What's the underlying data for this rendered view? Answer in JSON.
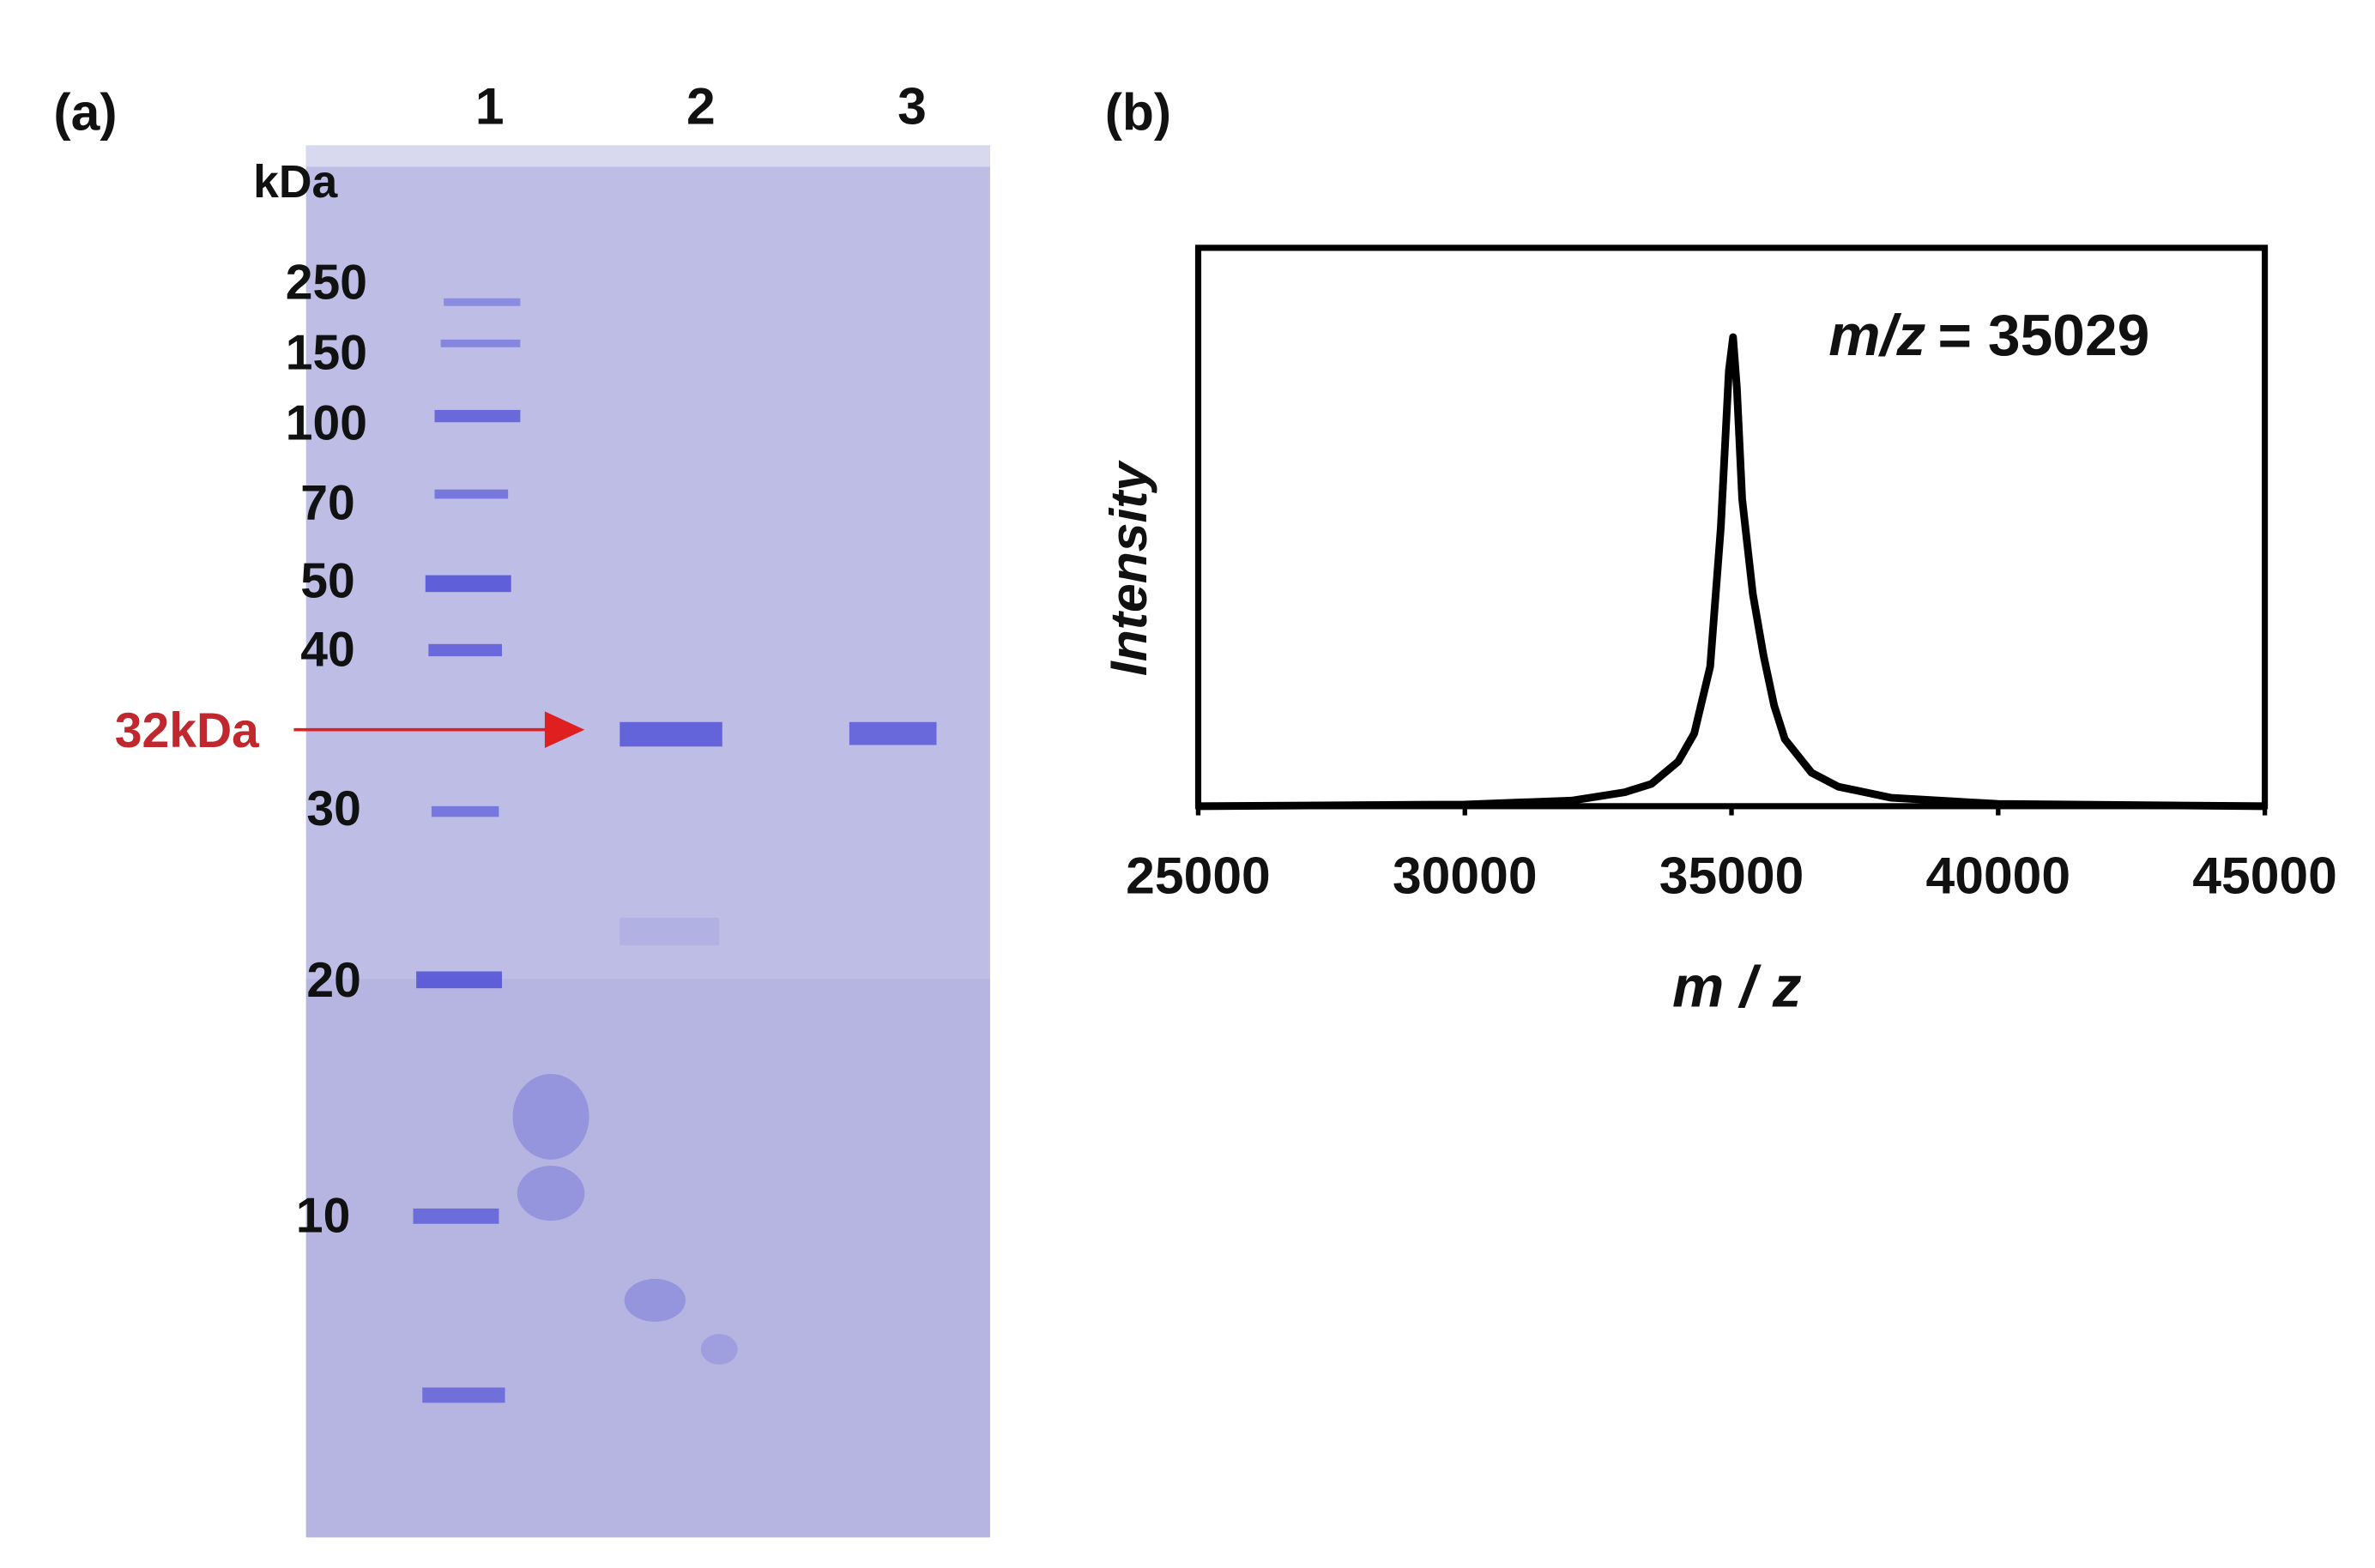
{
  "panel_a": {
    "label": "(a)",
    "lanes": [
      "1",
      "2",
      "3"
    ],
    "unit": "kDa",
    "markers": [
      "250",
      "150",
      "100",
      "70",
      "50",
      "40",
      "30",
      "20",
      "10"
    ],
    "arrow_label": "32kDa"
  },
  "panel_b": {
    "label": "(b)"
  },
  "chart_data": {
    "type": "line",
    "xlabel": "m / z",
    "ylabel": "Intensity",
    "annotation": {
      "variable": "m/z",
      "text": "= 35029"
    },
    "x": [
      25000,
      30000,
      32000,
      33000,
      33500,
      34000,
      34300,
      34600,
      34800,
      34950,
      35029,
      35100,
      35200,
      35400,
      35600,
      35800,
      36000,
      36500,
      37000,
      38000,
      40000,
      45000
    ],
    "values": [
      0,
      0.3,
      1,
      2.5,
      4,
      8,
      13,
      25,
      50,
      78,
      84,
      75,
      55,
      38,
      27,
      18,
      12,
      6,
      3.5,
      1.5,
      0.4,
      0
    ],
    "color": "#000000",
    "xlim": [
      25000,
      45000
    ],
    "xticks": [
      25000,
      30000,
      35000,
      40000,
      45000
    ],
    "ylim": [
      0,
      100
    ]
  }
}
